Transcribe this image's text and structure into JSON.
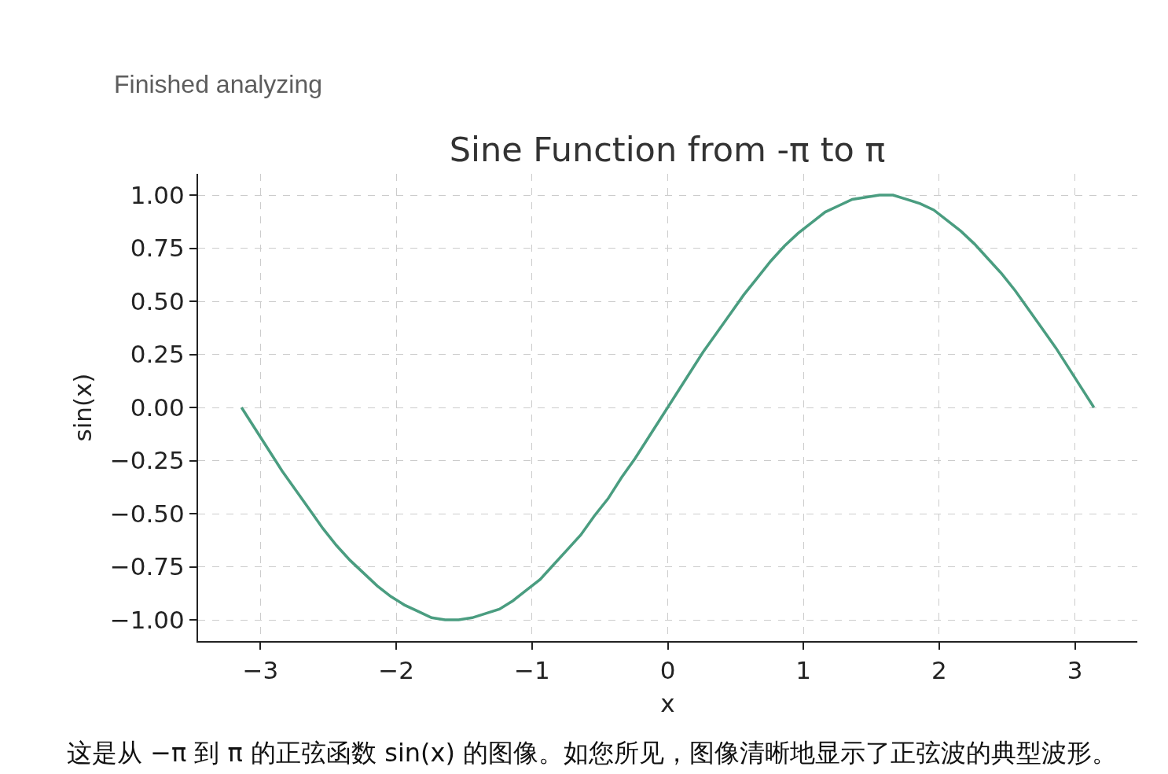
{
  "chart_data": {
    "type": "line",
    "title": "Sine Function from -π to π",
    "xlabel": "x",
    "ylabel": "sin(x)",
    "annotations": [
      "Finished analyzing",
      "这是从 −π 到 π 的正弦函数 sin(x) 的图像。如您所见，图像清晰地显示了正弦波的典型波形。"
    ],
    "x": [
      -3.14,
      -3.04,
      -2.94,
      -2.84,
      -2.74,
      -2.64,
      -2.54,
      -2.44,
      -2.34,
      -2.24,
      -2.14,
      -2.04,
      -1.94,
      -1.84,
      -1.74,
      -1.64,
      -1.54,
      -1.44,
      -1.34,
      -1.24,
      -1.14,
      -1.04,
      -0.94,
      -0.84,
      -0.74,
      -0.64,
      -0.54,
      -0.44,
      -0.34,
      -0.24,
      -0.14,
      -0.04,
      0.06,
      0.16,
      0.26,
      0.36,
      0.46,
      0.56,
      0.66,
      0.76,
      0.86,
      0.96,
      1.06,
      1.16,
      1.26,
      1.36,
      1.46,
      1.56,
      1.66,
      1.76,
      1.86,
      1.96,
      2.06,
      2.16,
      2.26,
      2.36,
      2.46,
      2.56,
      2.66,
      2.76,
      2.86,
      2.96,
      3.06,
      3.14
    ],
    "values": [
      0.0,
      -0.1,
      -0.2,
      -0.3,
      -0.39,
      -0.48,
      -0.57,
      -0.65,
      -0.72,
      -0.78,
      -0.84,
      -0.89,
      -0.93,
      -0.96,
      -0.99,
      -1.0,
      -1.0,
      -0.99,
      -0.97,
      -0.95,
      -0.91,
      -0.86,
      -0.81,
      -0.74,
      -0.67,
      -0.6,
      -0.51,
      -0.43,
      -0.33,
      -0.24,
      -0.14,
      -0.04,
      0.06,
      0.16,
      0.26,
      0.35,
      0.44,
      0.53,
      0.61,
      0.69,
      0.76,
      0.82,
      0.87,
      0.92,
      0.95,
      0.98,
      0.99,
      1.0,
      1.0,
      0.98,
      0.96,
      0.93,
      0.88,
      0.83,
      0.77,
      0.7,
      0.63,
      0.55,
      0.46,
      0.37,
      0.28,
      0.18,
      0.08,
      0.0
    ],
    "color": "#4a9d80",
    "line_style": "solid",
    "xlim": [
      -3.46,
      3.46
    ],
    "xticks": [
      {
        "value": -3,
        "label": "−3"
      },
      {
        "value": -2,
        "label": "−2"
      },
      {
        "value": -1,
        "label": "−1"
      },
      0,
      1,
      2,
      3
    ],
    "ylim": [
      -1.1,
      1.1
    ],
    "yticks": [
      {
        "value": -1,
        "label": "−1.00"
      },
      {
        "value": -0.75,
        "label": "−0.75"
      },
      {
        "value": -0.5,
        "label": "−0.50"
      },
      {
        "value": -0.25,
        "label": "−0.25"
      },
      {
        "value": 0,
        "label": "0.00"
      },
      {
        "value": 0.25,
        "label": "0.25"
      },
      {
        "value": 0.5,
        "label": "0.50"
      },
      {
        "value": 0.75,
        "label": "0.75"
      },
      {
        "value": 1,
        "label": "1.00"
      }
    ],
    "grid": true
  }
}
